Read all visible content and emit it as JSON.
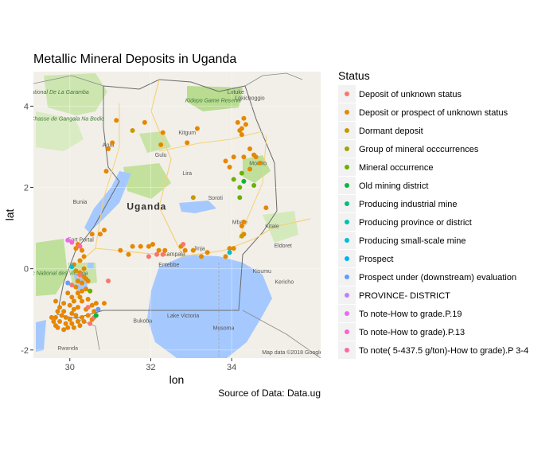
{
  "chart_data": {
    "type": "scatter",
    "title": "Metallic Mineral Deposits in Uganda",
    "xlabel": "lon",
    "ylabel": "lat",
    "xlim": [
      29.1,
      36.2
    ],
    "ylim": [
      -2.2,
      4.85
    ],
    "x_ticks": [
      30,
      32,
      34
    ],
    "y_ticks": [
      4,
      2,
      0,
      -2
    ],
    "grid": true,
    "caption": "Source of Data: Data.ug",
    "legend": {
      "title": "Status",
      "placement": "right",
      "entries": [
        {
          "label": "Deposit of unknown status",
          "color": "#F8766D"
        },
        {
          "label": "Deposit or prospect of unknown status",
          "color": "#E58700"
        },
        {
          "label": "Dormant deposit",
          "color": "#C99800"
        },
        {
          "label": "Group of  mineral occcurrences",
          "color": "#A3A500"
        },
        {
          "label": "Mineral occurrence",
          "color": "#6BB100"
        },
        {
          "label": "Old mining district",
          "color": "#00BA38"
        },
        {
          "label": "Producing industrial mine",
          "color": "#00BF7D"
        },
        {
          "label": "Producing province or district",
          "color": "#00C0AF"
        },
        {
          "label": "Producing small-scale mine",
          "color": "#00BCD8"
        },
        {
          "label": "Prospect",
          "color": "#00B0F6"
        },
        {
          "label": "Prospect under (downstream) evaluation",
          "color": "#619CFF"
        },
        {
          "label": "PROVINCE- DISTRICT",
          "color": "#B983FF"
        },
        {
          "label": "To note-How to grade.P.19",
          "color": "#E76BF3"
        },
        {
          "label": "To note-How to grade).P.13",
          "color": "#FD61D1"
        },
        {
          "label": "To note( 5-437.5 g/ton)-How to grade).P 3-4",
          "color": "#FF67A4"
        }
      ]
    },
    "basemap": {
      "country_label": "Uganda",
      "labels": [
        {
          "text": "Parc National De La Garamba",
          "lon": 29.55,
          "lat": 4.3,
          "green": true
        },
        {
          "text": "Domaine de Chasse de Gangala Na Bodio",
          "lon": 29.55,
          "lat": 3.65,
          "green": true
        },
        {
          "text": "Kidepo Game Reserve",
          "lon": 33.55,
          "lat": 4.1,
          "green": true
        },
        {
          "text": "Parc National des Virunga",
          "lon": 29.65,
          "lat": -0.15,
          "green": true
        },
        {
          "text": "Lotuke",
          "lon": 34.1,
          "lat": 4.3,
          "green": false
        },
        {
          "text": "Lokichoggio",
          "lon": 34.45,
          "lat": 4.15,
          "green": false
        },
        {
          "text": "Kitgum",
          "lon": 32.9,
          "lat": 3.3,
          "green": false
        },
        {
          "text": "Gulu",
          "lon": 32.25,
          "lat": 2.75,
          "green": false
        },
        {
          "text": "Arua",
          "lon": 30.95,
          "lat": 3.0,
          "green": false
        },
        {
          "text": "Lira",
          "lon": 32.9,
          "lat": 2.3,
          "green": false
        },
        {
          "text": "Moroto",
          "lon": 34.65,
          "lat": 2.55,
          "green": false
        },
        {
          "text": "Soroti",
          "lon": 33.6,
          "lat": 1.7,
          "green": false
        },
        {
          "text": "Mbale",
          "lon": 34.2,
          "lat": 1.1,
          "green": false
        },
        {
          "text": "Bunia",
          "lon": 30.25,
          "lat": 1.6,
          "green": false
        },
        {
          "text": "Fort Portal",
          "lon": 30.27,
          "lat": 0.67,
          "green": false
        },
        {
          "text": "Kampala",
          "lon": 32.58,
          "lat": 0.32,
          "green": false
        },
        {
          "text": "Entebbe",
          "lon": 32.45,
          "lat": 0.05,
          "green": false
        },
        {
          "text": "Jinja",
          "lon": 33.2,
          "lat": 0.45,
          "green": false
        },
        {
          "text": "Kisumu",
          "lon": 34.75,
          "lat": -0.1,
          "green": false
        },
        {
          "text": "Kitale",
          "lon": 35.0,
          "lat": 1.0,
          "green": false
        },
        {
          "text": "Eldoret",
          "lon": 35.27,
          "lat": 0.52,
          "green": false
        },
        {
          "text": "Kericho",
          "lon": 35.3,
          "lat": -0.37,
          "green": false
        },
        {
          "text": "Lake Victoria",
          "lon": 32.8,
          "lat": -1.2,
          "green": false
        },
        {
          "text": "Bukoba",
          "lon": 31.8,
          "lat": -1.33,
          "green": false
        },
        {
          "text": "Musoma",
          "lon": 33.8,
          "lat": -1.5,
          "green": false
        },
        {
          "text": "Rwanda",
          "lon": 29.95,
          "lat": -2.0,
          "green": false
        },
        {
          "text": "Map data ©2018 Google",
          "lon": 35.5,
          "lat": -2.1,
          "green": false
        }
      ]
    },
    "series": [
      {
        "name": "Deposit or prospect of unknown status",
        "color": "#E58700",
        "points": [
          [
            31.15,
            3.65
          ],
          [
            31.85,
            3.6
          ],
          [
            32.3,
            3.35
          ],
          [
            32.25,
            3.05
          ],
          [
            33.15,
            3.45
          ],
          [
            32.9,
            3.1
          ],
          [
            31.05,
            3.1
          ],
          [
            30.95,
            2.95
          ],
          [
            30.9,
            2.4
          ],
          [
            34.15,
            3.6
          ],
          [
            34.25,
            3.45
          ],
          [
            34.3,
            3.7
          ],
          [
            34.35,
            3.55
          ],
          [
            34.2,
            3.4
          ],
          [
            34.25,
            3.3
          ],
          [
            34.45,
            2.95
          ],
          [
            34.6,
            2.75
          ],
          [
            34.7,
            2.6
          ],
          [
            34.3,
            2.75
          ],
          [
            34.55,
            2.8
          ],
          [
            34.05,
            2.75
          ],
          [
            33.85,
            2.65
          ],
          [
            33.95,
            2.5
          ],
          [
            34.45,
            2.45
          ],
          [
            34.85,
            1.5
          ],
          [
            34.3,
            1.15
          ],
          [
            34.25,
            1.05
          ],
          [
            34.3,
            0.85
          ],
          [
            34.05,
            0.5
          ],
          [
            33.95,
            0.5
          ],
          [
            33.85,
            0.3
          ],
          [
            33.4,
            0.4
          ],
          [
            33.25,
            0.3
          ],
          [
            33.05,
            0.45
          ],
          [
            32.85,
            0.45
          ],
          [
            32.75,
            0.55
          ],
          [
            32.35,
            0.45
          ],
          [
            32.2,
            0.45
          ],
          [
            32.05,
            0.6
          ],
          [
            31.95,
            0.55
          ],
          [
            31.75,
            0.55
          ],
          [
            31.55,
            0.55
          ],
          [
            31.45,
            0.35
          ],
          [
            31.25,
            0.45
          ],
          [
            30.85,
            0.95
          ],
          [
            30.75,
            0.85
          ],
          [
            30.55,
            0.85
          ],
          [
            30.2,
            0.6
          ],
          [
            30.15,
            0.5
          ],
          [
            30.3,
            0.45
          ],
          [
            30.35,
            0.3
          ],
          [
            30.25,
            0.2
          ],
          [
            30.1,
            0.1
          ],
          [
            30.35,
            0.0
          ],
          [
            30.25,
            -0.1
          ],
          [
            30.35,
            -0.2
          ],
          [
            30.4,
            -0.25
          ],
          [
            30.3,
            -0.35
          ],
          [
            30.45,
            -0.3
          ],
          [
            30.2,
            -0.3
          ],
          [
            30.15,
            -0.45
          ],
          [
            30.3,
            -0.55
          ],
          [
            30.4,
            -0.5
          ],
          [
            30.5,
            -0.55
          ],
          [
            30.2,
            -0.6
          ],
          [
            30.05,
            -0.7
          ],
          [
            29.95,
            -0.6
          ],
          [
            30.1,
            -0.8
          ],
          [
            30.3,
            -0.8
          ],
          [
            30.45,
            -0.75
          ],
          [
            30.55,
            -0.9
          ],
          [
            30.65,
            -0.85
          ],
          [
            30.7,
            -1.0
          ],
          [
            30.6,
            -1.05
          ],
          [
            30.4,
            -1.0
          ],
          [
            30.2,
            -0.95
          ],
          [
            30.0,
            -0.9
          ],
          [
            29.85,
            -0.85
          ],
          [
            29.75,
            -0.95
          ],
          [
            29.65,
            -0.8
          ],
          [
            29.7,
            -1.05
          ],
          [
            29.8,
            -1.15
          ],
          [
            29.9,
            -1.2
          ],
          [
            30.05,
            -1.1
          ],
          [
            30.15,
            -1.15
          ],
          [
            30.3,
            -1.2
          ],
          [
            30.45,
            -1.15
          ],
          [
            30.55,
            -1.25
          ],
          [
            30.35,
            -1.3
          ],
          [
            30.2,
            -1.3
          ],
          [
            30.05,
            -1.35
          ],
          [
            29.9,
            -1.35
          ],
          [
            29.75,
            -1.3
          ],
          [
            29.65,
            -1.2
          ],
          [
            29.6,
            -1.3
          ],
          [
            29.7,
            -1.45
          ],
          [
            29.85,
            -1.5
          ],
          [
            29.95,
            -1.45
          ],
          [
            30.1,
            -1.45
          ],
          [
            30.25,
            -1.4
          ],
          [
            30.0,
            -1.25
          ],
          [
            29.85,
            -1.05
          ],
          [
            30.1,
            -1.0
          ],
          [
            30.25,
            -0.7
          ],
          [
            29.55,
            -1.2
          ],
          [
            29.65,
            -1.4
          ],
          [
            30.85,
            -0.85
          ]
        ]
      },
      {
        "name": "Deposit of unknown status",
        "color": "#F8766D",
        "points": [
          [
            32.8,
            0.6
          ],
          [
            32.3,
            0.35
          ],
          [
            32.15,
            0.35
          ],
          [
            31.95,
            0.3
          ],
          [
            30.95,
            -0.3
          ],
          [
            30.25,
            -0.15
          ],
          [
            30.05,
            -0.4
          ],
          [
            30.45,
            -0.95
          ],
          [
            30.6,
            -1.2
          ],
          [
            30.5,
            -1.35
          ]
        ]
      },
      {
        "name": "Dormant deposit",
        "color": "#C99800",
        "points": [
          [
            31.55,
            3.4
          ],
          [
            33.05,
            1.75
          ],
          [
            34.25,
            0.8
          ],
          [
            30.15,
            -0.05
          ]
        ]
      },
      {
        "name": "Mineral occurrence",
        "color": "#6BB100",
        "points": [
          [
            34.25,
            2.35
          ],
          [
            34.05,
            2.2
          ],
          [
            34.55,
            2.05
          ],
          [
            34.2,
            2.0
          ],
          [
            34.2,
            1.75
          ],
          [
            30.5,
            -0.55
          ]
        ]
      },
      {
        "name": "Old mining district",
        "color": "#00BA38",
        "points": [
          [
            34.3,
            2.15
          ],
          [
            30.65,
            -1.15
          ]
        ]
      },
      {
        "name": "Producing small-scale mine",
        "color": "#00BCD8",
        "points": [
          [
            33.95,
            0.4
          ],
          [
            30.05,
            0.05
          ]
        ]
      },
      {
        "name": "Prospect under (downstream) evaluation",
        "color": "#619CFF",
        "points": [
          [
            30.7,
            -1.0
          ],
          [
            29.95,
            -0.35
          ]
        ]
      },
      {
        "name": "To note-How to grade.P.19",
        "color": "#E76BF3",
        "points": [
          [
            29.95,
            0.7
          ]
        ]
      },
      {
        "name": "To note-How to grade).P.13",
        "color": "#FD61D1",
        "points": [
          [
            30.05,
            0.65
          ]
        ]
      },
      {
        "name": "To note( 5-437.5 g/ton)-How to grade).P 3-4",
        "color": "#FF67A4",
        "points": [
          [
            30.25,
            0.55
          ]
        ]
      }
    ]
  }
}
